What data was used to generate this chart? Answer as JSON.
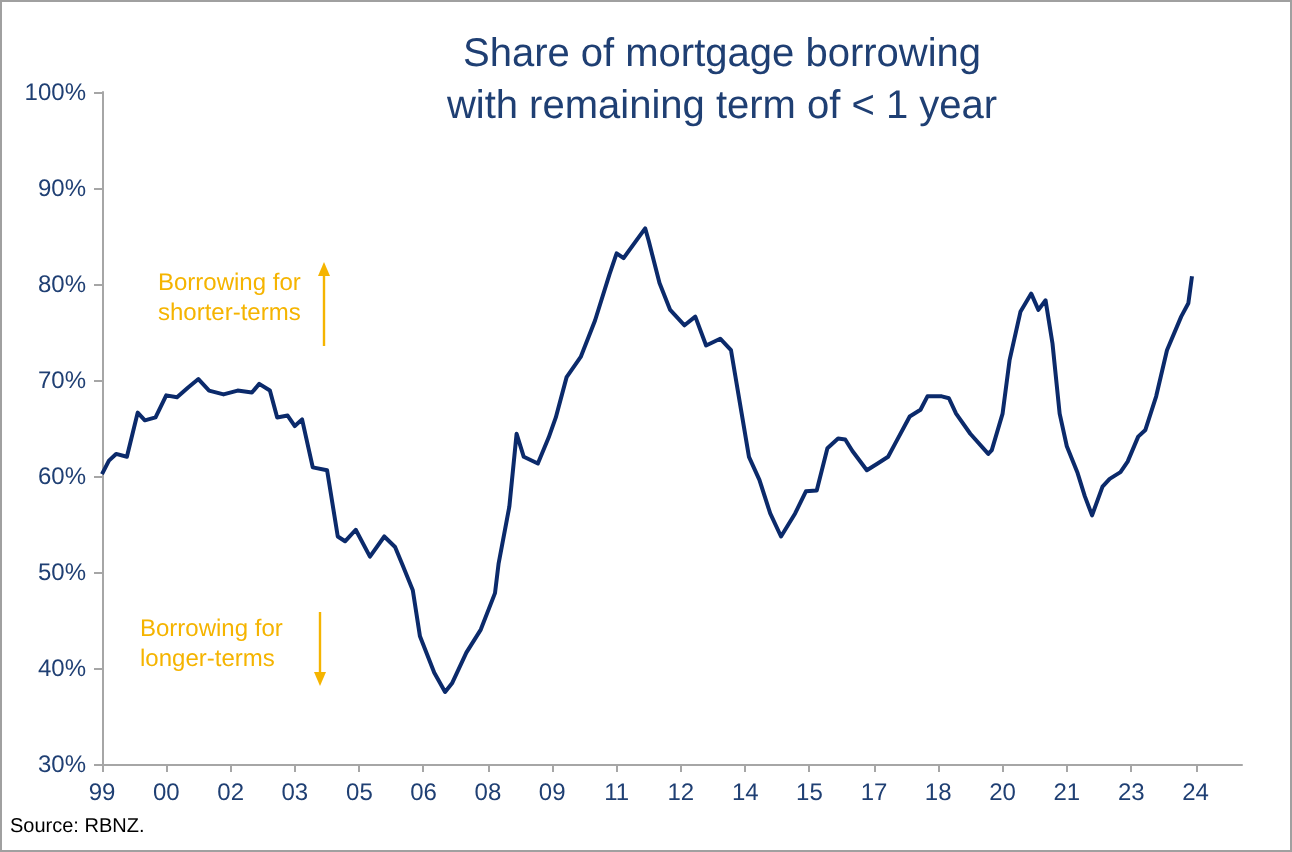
{
  "chart_data": {
    "type": "line",
    "title": "Share of mortgage borrowing\nwith remaining term of < 1 year",
    "annotations": [
      "Borrowing for shorter-terms",
      "Borrowing for longer-terms",
      "Source: RBNZ."
    ],
    "x": [
      "1999-01",
      "1999-03",
      "1999-05",
      "1999-08",
      "1999-11",
      "2000-01",
      "2000-04",
      "2000-07",
      "2000-10",
      "2001-01",
      "2001-04",
      "2001-07",
      "2001-11",
      "2002-03",
      "2002-07",
      "2002-09",
      "2002-12",
      "2003-02",
      "2003-05",
      "2003-07",
      "2003-09",
      "2003-12",
      "2004-04",
      "2004-07",
      "2004-09",
      "2004-12",
      "2005-04",
      "2005-08",
      "2005-11",
      "2006-01",
      "2006-04",
      "2006-06",
      "2006-10",
      "2007-01",
      "2007-03",
      "2007-07",
      "2007-11",
      "2008-03",
      "2008-04",
      "2008-07",
      "2008-09",
      "2008-11",
      "2009-03",
      "2009-06",
      "2009-08",
      "2009-11",
      "2010-03",
      "2010-07",
      "2010-11",
      "2011-01",
      "2011-03",
      "2011-09",
      "2011-10",
      "2012-01",
      "2012-04",
      "2012-08",
      "2012-11",
      "2013-02",
      "2013-06",
      "2013-09",
      "2013-12",
      "2014-02",
      "2014-05",
      "2014-08",
      "2014-11",
      "2015-03",
      "2015-06",
      "2015-09",
      "2015-12",
      "2016-03",
      "2016-05",
      "2016-07",
      "2016-11",
      "2017-02",
      "2017-05",
      "2017-07",
      "2017-11",
      "2018-02",
      "2018-04",
      "2018-08",
      "2018-10",
      "2018-12",
      "2019-04",
      "2019-09",
      "2019-10",
      "2020-01",
      "2020-03",
      "2020-06",
      "2020-09",
      "2020-11",
      "2021-01",
      "2021-03",
      "2021-05",
      "2021-07",
      "2021-10",
      "2021-12",
      "2022-02",
      "2022-05",
      "2022-07",
      "2022-10",
      "2022-12",
      "2023-03",
      "2023-05",
      "2023-08",
      "2023-11",
      "2024-03",
      "2024-05",
      "2024-06"
    ],
    "series": [
      {
        "color": "#0b2a6b",
        "values": [
          60.2,
          61.6,
          62.3,
          62.0,
          66.6,
          65.8,
          66.1,
          68.4,
          68.2,
          69.2,
          70.1,
          68.9,
          68.5,
          68.9,
          68.7,
          69.6,
          68.9,
          66.1,
          66.3,
          65.2,
          65.9,
          60.9,
          60.6,
          53.7,
          53.2,
          54.4,
          51.6,
          53.7,
          52.6,
          50.8,
          48.1,
          43.3,
          39.5,
          37.5,
          38.4,
          41.6,
          44.0,
          47.8,
          50.9,
          56.8,
          64.4,
          62.0,
          61.3,
          64.0,
          66.1,
          70.3,
          72.4,
          76.2,
          81.0,
          83.2,
          82.7,
          85.8,
          84.5,
          80.1,
          77.3,
          75.7,
          76.6,
          73.6,
          74.3,
          73.1,
          66.5,
          62.0,
          59.6,
          56.1,
          53.7,
          56.1,
          58.4,
          58.5,
          62.9,
          63.9,
          63.8,
          62.6,
          60.6,
          61.3,
          62.0,
          63.4,
          66.2,
          66.9,
          68.3,
          68.3,
          68.1,
          66.5,
          64.4,
          62.3,
          62.7,
          66.5,
          72.1,
          77.1,
          79.0,
          77.3,
          78.3,
          73.8,
          66.5,
          63.1,
          60.3,
          57.9,
          55.9,
          58.9,
          59.7,
          60.4,
          61.5,
          64.1,
          64.8,
          68.3,
          73.1,
          76.6,
          78.0,
          80.8
        ]
      }
    ],
    "xlim": [
      "1999-01",
      "2025-08"
    ],
    "xticks": [
      {
        "value": "1999-01",
        "label": "99"
      },
      {
        "value": "2000-07",
        "label": "00"
      },
      {
        "value": "2002-01",
        "label": "02"
      },
      {
        "value": "2003-07",
        "label": "03"
      },
      {
        "value": "2005-01",
        "label": "05"
      },
      {
        "value": "2006-07",
        "label": "06"
      },
      {
        "value": "2008-01",
        "label": "08"
      },
      {
        "value": "2009-07",
        "label": "09"
      },
      {
        "value": "2011-01",
        "label": "11"
      },
      {
        "value": "2012-07",
        "label": "12"
      },
      {
        "value": "2014-01",
        "label": "14"
      },
      {
        "value": "2015-07",
        "label": "15"
      },
      {
        "value": "2017-01",
        "label": "17"
      },
      {
        "value": "2018-07",
        "label": "18"
      },
      {
        "value": "2020-01",
        "label": "20"
      },
      {
        "value": "2021-07",
        "label": "21"
      },
      {
        "value": "2023-01",
        "label": "23"
      },
      {
        "value": "2024-07",
        "label": "24"
      }
    ],
    "ylim": [
      30,
      100
    ],
    "yticks": [
      {
        "value": 30,
        "label": "30%"
      },
      {
        "value": 40,
        "label": "40%"
      },
      {
        "value": 50,
        "label": "50%"
      },
      {
        "value": 60,
        "label": "60%"
      },
      {
        "value": 70,
        "label": "70%"
      },
      {
        "value": 80,
        "label": "80%"
      },
      {
        "value": 90,
        "label": "90%"
      },
      {
        "value": 100,
        "label": "100%"
      }
    ],
    "grid": false,
    "marker": "none",
    "line_style": "solid"
  }
}
